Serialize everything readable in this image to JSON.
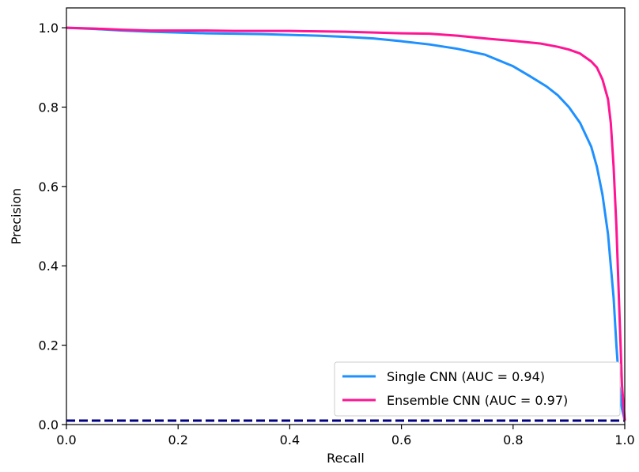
{
  "chart_data": {
    "type": "line",
    "title": "",
    "xlabel": "Recall",
    "ylabel": "Precision",
    "xlim": [
      0.0,
      1.0
    ],
    "ylim": [
      0.0,
      1.05
    ],
    "xticks": [
      "0.0",
      "0.2",
      "0.4",
      "0.6",
      "0.8",
      "1.0"
    ],
    "yticks": [
      "0.0",
      "0.2",
      "0.4",
      "0.6",
      "0.8",
      "1.0"
    ],
    "grid": false,
    "legend_position": "bottom-right",
    "series": [
      {
        "name": "Single CNN (AUC = 0.94)",
        "color": "#1e90ff",
        "style": "solid",
        "x": [
          0.0,
          0.05,
          0.1,
          0.15,
          0.2,
          0.25,
          0.3,
          0.35,
          0.4,
          0.45,
          0.5,
          0.55,
          0.6,
          0.65,
          0.7,
          0.75,
          0.8,
          0.83,
          0.86,
          0.88,
          0.9,
          0.92,
          0.94,
          0.95,
          0.96,
          0.97,
          0.98,
          0.985,
          0.99,
          0.995,
          1.0
        ],
        "y": [
          1.0,
          0.997,
          0.993,
          0.99,
          0.988,
          0.986,
          0.985,
          0.984,
          0.982,
          0.98,
          0.977,
          0.973,
          0.966,
          0.958,
          0.947,
          0.932,
          0.903,
          0.878,
          0.852,
          0.83,
          0.8,
          0.76,
          0.7,
          0.65,
          0.58,
          0.48,
          0.32,
          0.2,
          0.1,
          0.04,
          0.01
        ]
      },
      {
        "name": "Ensemble CNN (AUC = 0.97)",
        "color": "#ff1493",
        "style": "solid",
        "x": [
          0.0,
          0.05,
          0.1,
          0.15,
          0.2,
          0.25,
          0.3,
          0.35,
          0.4,
          0.45,
          0.5,
          0.55,
          0.6,
          0.65,
          0.7,
          0.75,
          0.8,
          0.85,
          0.88,
          0.9,
          0.92,
          0.94,
          0.95,
          0.96,
          0.97,
          0.975,
          0.98,
          0.985,
          0.99,
          0.995,
          1.0
        ],
        "y": [
          1.0,
          0.998,
          0.995,
          0.993,
          0.993,
          0.993,
          0.992,
          0.992,
          0.992,
          0.991,
          0.99,
          0.988,
          0.986,
          0.985,
          0.98,
          0.973,
          0.967,
          0.96,
          0.952,
          0.945,
          0.935,
          0.915,
          0.9,
          0.87,
          0.82,
          0.76,
          0.65,
          0.5,
          0.3,
          0.1,
          0.01
        ]
      },
      {
        "name": "",
        "color": "#000080",
        "style": "dashed",
        "x": [
          0.0,
          1.0
        ],
        "y": [
          0.01,
          0.01
        ]
      }
    ]
  }
}
